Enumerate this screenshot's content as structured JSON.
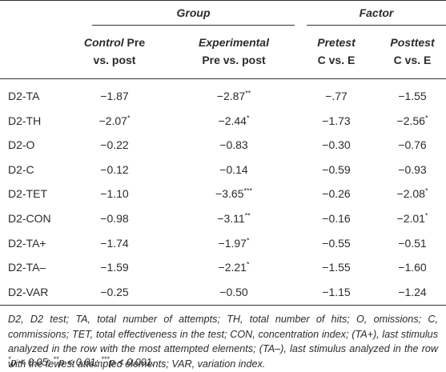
{
  "table": {
    "groups": [
      "Group",
      "Factor"
    ],
    "columns": [
      {
        "italic": "Control",
        "line1": "Pre",
        "line2": "vs. post"
      },
      {
        "italic": "Experimental",
        "line2": "Pre vs. post"
      },
      {
        "italic": "Pretest",
        "line2": "C vs. E"
      },
      {
        "italic": "Posttest",
        "line2": "C vs. E"
      }
    ],
    "rows": [
      {
        "label": "D2-TA",
        "cells": [
          "−1.87",
          "−2.87**",
          "−.77",
          "−1.55"
        ]
      },
      {
        "label": "D2-TH",
        "cells": [
          "−2.07*",
          "−2.44*",
          "−1.73",
          "−2.56*"
        ]
      },
      {
        "label": "D2-O",
        "cells": [
          "−0.22",
          "−0.83",
          "−0.30",
          "−0.76"
        ]
      },
      {
        "label": "D2-C",
        "cells": [
          "−0.12",
          "−0.14",
          "−0.59",
          "−0.93"
        ]
      },
      {
        "label": "D2-TET",
        "cells": [
          "−1.10",
          "−3.65***",
          "−0.26",
          "−2.08*"
        ]
      },
      {
        "label": "D2-CON",
        "cells": [
          "−0.98",
          "−3.11**",
          "−0.16",
          "−2.01*"
        ]
      },
      {
        "label": "D2-TA+",
        "cells": [
          "−1.74",
          "−1.97*",
          "−0.55",
          "−0.51"
        ]
      },
      {
        "label": "D2-TA–",
        "cells": [
          "−1.59",
          "−2.21*",
          "−1.55",
          "−1.60"
        ]
      },
      {
        "label": "D2-VAR",
        "cells": [
          "−0.25",
          "−0.50",
          "−1.15",
          "−1.24"
        ]
      }
    ]
  },
  "note": "D2, D2 test; TA, total number of attempts; TH, total number of hits; O, omissions; C, commissions; TET, total effectiveness in the test; CON, concentration index; (TA+), last stimulus analyzed in the row with the most attempted elements; (TA–), last stimulus analyzed in the row with the fewest attempted elements; VAR, variation index.",
  "significance": "*p < 0.05; **p < 0.01; ***p < 0.001."
}
